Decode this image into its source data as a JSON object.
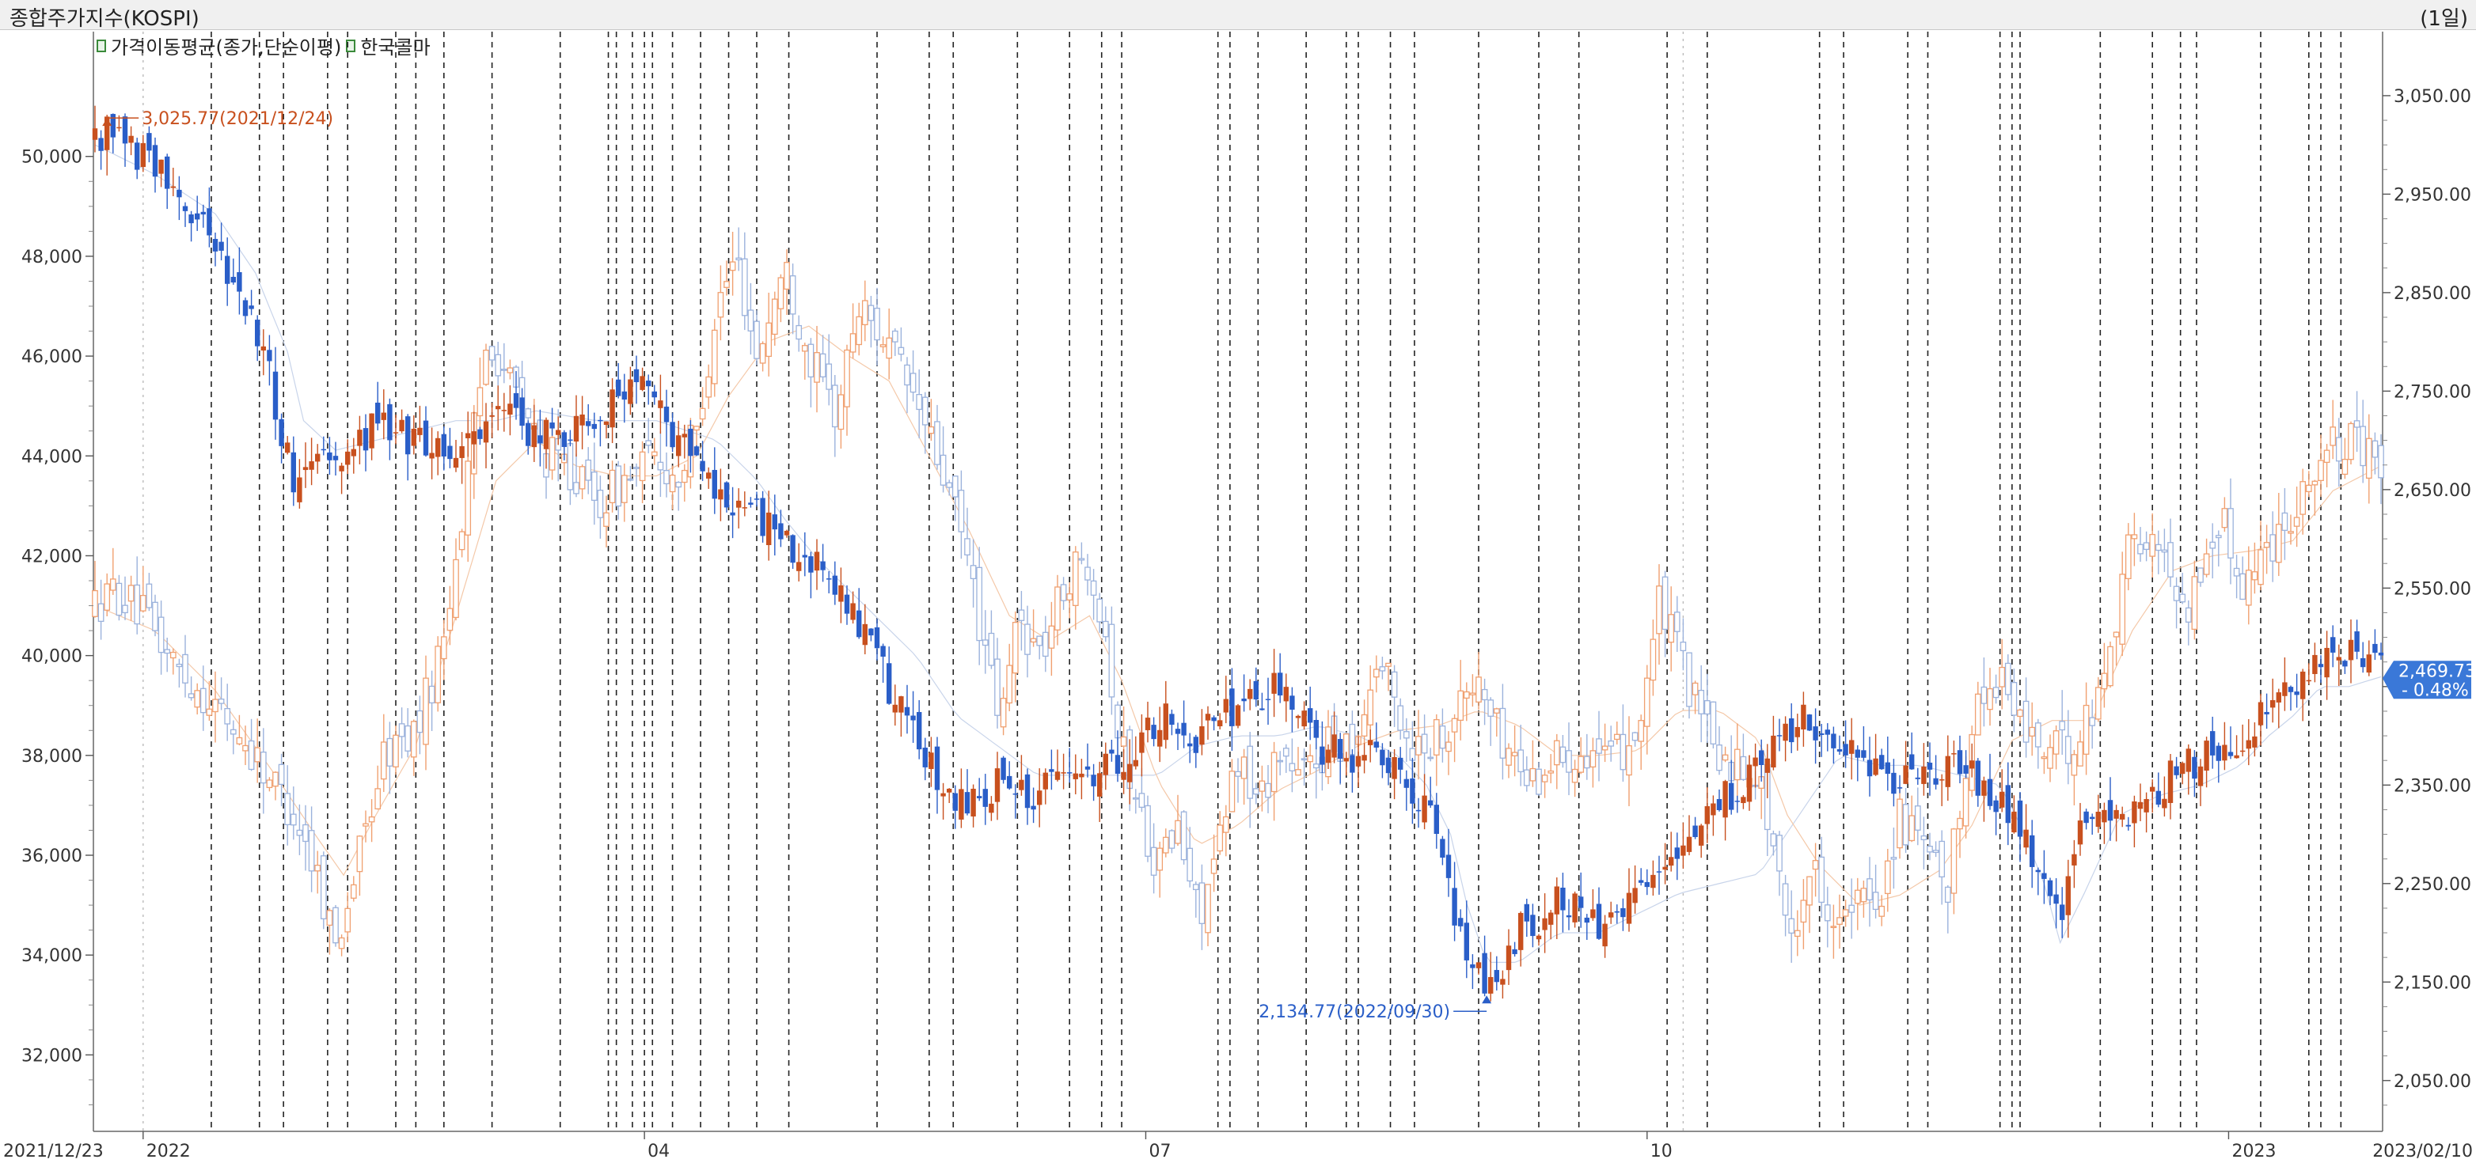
{
  "header": {
    "title": "종합주가지수(KOSPI)",
    "period": "(1일)"
  },
  "legend": [
    {
      "label": "가격이동평균(종가,단순이평)",
      "icon": "ma-legend-icon"
    },
    {
      "label": "한국콜마",
      "icon": "compare-legend-icon"
    }
  ],
  "colors": {
    "up": "#c8501e",
    "down": "#2a5ec8",
    "up_light": "#f0a070",
    "down_light": "#9bb2dc",
    "current_badge": "#3a78d8"
  },
  "annotations": {
    "high_label": "3,025.77(2021/12/24)",
    "low_label": "2,134.77(2022/09/30)",
    "current_value": "2,469.73",
    "current_change": "- 0.48%"
  },
  "chart_data": {
    "type": "candlestick",
    "x_start": "2021/12/23",
    "x_end": "2023/02/10",
    "x_tick_labels": [
      "2021/12/23",
      "2022",
      "04",
      "07",
      "10",
      "2023",
      "2023/02/10"
    ],
    "left_axis": {
      "series": "한국콜마",
      "ticks": [
        "50,000",
        "48,000",
        "46,000",
        "44,000",
        "42,000",
        "40,000",
        "38,000",
        "36,000",
        "34,000",
        "32,000"
      ],
      "range": [
        30500,
        52500
      ]
    },
    "right_axis": {
      "series": "종합주가지수(KOSPI)",
      "ticks": [
        "3,050.00",
        "2,950.00",
        "2,850.00",
        "2,750.00",
        "2,650.00",
        "2,550.00",
        "2,450.00",
        "2,350.00",
        "2,250.00",
        "2,150.00",
        "2,050.00"
      ],
      "range": [
        2000,
        3115
      ]
    },
    "series": [
      {
        "name": "종합주가지수(KOSPI)",
        "axis": "right",
        "path": [
          [
            0,
            3000
          ],
          [
            3,
            3025.77
          ],
          [
            10,
            2990
          ],
          [
            20,
            2960
          ],
          [
            30,
            2900
          ],
          [
            40,
            2820
          ],
          [
            46,
            2720
          ],
          [
            50,
            2650
          ],
          [
            55,
            2700
          ],
          [
            62,
            2680
          ],
          [
            70,
            2720
          ],
          [
            80,
            2700
          ],
          [
            90,
            2690
          ],
          [
            100,
            2730
          ],
          [
            110,
            2700
          ],
          [
            122,
            2720
          ],
          [
            135,
            2760
          ],
          [
            145,
            2700
          ],
          [
            158,
            2640
          ],
          [
            170,
            2610
          ],
          [
            180,
            2570
          ],
          [
            190,
            2520
          ],
          [
            200,
            2430
          ],
          [
            210,
            2360
          ],
          [
            215,
            2330
          ],
          [
            225,
            2350
          ],
          [
            235,
            2340
          ],
          [
            245,
            2360
          ],
          [
            255,
            2370
          ],
          [
            265,
            2420
          ],
          [
            275,
            2400
          ],
          [
            285,
            2430
          ],
          [
            295,
            2450
          ],
          [
            305,
            2390
          ],
          [
            315,
            2380
          ],
          [
            325,
            2370
          ],
          [
            330,
            2330
          ],
          [
            335,
            2300
          ],
          [
            340,
            2200
          ],
          [
            347,
            2134.77
          ],
          [
            355,
            2200
          ],
          [
            365,
            2230
          ],
          [
            375,
            2210
          ],
          [
            385,
            2240
          ],
          [
            395,
            2270
          ],
          [
            405,
            2330
          ],
          [
            415,
            2370
          ],
          [
            425,
            2420
          ],
          [
            435,
            2400
          ],
          [
            445,
            2360
          ],
          [
            455,
            2350
          ],
          [
            465,
            2380
          ],
          [
            475,
            2330
          ],
          [
            483,
            2280
          ],
          [
            490,
            2210
          ],
          [
            495,
            2300
          ],
          [
            505,
            2320
          ],
          [
            515,
            2350
          ],
          [
            525,
            2380
          ],
          [
            535,
            2400
          ],
          [
            545,
            2440
          ],
          [
            555,
            2470
          ],
          [
            563,
            2480
          ],
          [
            570,
            2469.73
          ]
        ]
      },
      {
        "name": "한국콜마",
        "axis": "left",
        "path": [
          [
            0,
            41000
          ],
          [
            5,
            41300
          ],
          [
            12,
            40800
          ],
          [
            20,
            39800
          ],
          [
            30,
            39000
          ],
          [
            40,
            38000
          ],
          [
            50,
            36800
          ],
          [
            56,
            35500
          ],
          [
            60,
            34200
          ],
          [
            66,
            36000
          ],
          [
            72,
            38000
          ],
          [
            80,
            38500
          ],
          [
            86,
            40000
          ],
          [
            92,
            43000
          ],
          [
            98,
            46500
          ],
          [
            105,
            45200
          ],
          [
            112,
            44000
          ],
          [
            118,
            43800
          ],
          [
            125,
            43000
          ],
          [
            132,
            43500
          ],
          [
            140,
            44000
          ],
          [
            145,
            43500
          ],
          [
            150,
            44500
          ],
          [
            155,
            47000
          ],
          [
            160,
            48000
          ],
          [
            165,
            46000
          ],
          [
            172,
            47800
          ],
          [
            178,
            46000
          ],
          [
            185,
            44800
          ],
          [
            190,
            47000
          ],
          [
            196,
            46500
          ],
          [
            205,
            45000
          ],
          [
            212,
            43500
          ],
          [
            218,
            41800
          ],
          [
            222,
            40000
          ],
          [
            226,
            38600
          ],
          [
            230,
            40800
          ],
          [
            236,
            40000
          ],
          [
            242,
            41500
          ],
          [
            248,
            42000
          ],
          [
            252,
            40500
          ],
          [
            255,
            38500
          ],
          [
            260,
            37000
          ],
          [
            265,
            35800
          ],
          [
            270,
            36500
          ],
          [
            275,
            34800
          ],
          [
            280,
            36000
          ],
          [
            285,
            38000
          ],
          [
            290,
            37000
          ],
          [
            295,
            38200
          ],
          [
            300,
            37500
          ],
          [
            305,
            38000
          ],
          [
            315,
            38500
          ],
          [
            320,
            40000
          ],
          [
            328,
            38200
          ],
          [
            335,
            38400
          ],
          [
            340,
            39000
          ],
          [
            345,
            39500
          ],
          [
            350,
            38400
          ],
          [
            358,
            37500
          ],
          [
            365,
            38000
          ],
          [
            372,
            38200
          ],
          [
            378,
            37800
          ],
          [
            385,
            38600
          ],
          [
            390,
            41000
          ],
          [
            395,
            40000
          ],
          [
            400,
            38800
          ],
          [
            405,
            38000
          ],
          [
            410,
            37800
          ],
          [
            413,
            38000
          ],
          [
            418,
            36500
          ],
          [
            422,
            34200
          ],
          [
            428,
            35800
          ],
          [
            435,
            34600
          ],
          [
            440,
            35000
          ],
          [
            445,
            35200
          ],
          [
            450,
            36800
          ],
          [
            458,
            35800
          ],
          [
            462,
            35200
          ],
          [
            468,
            38800
          ],
          [
            475,
            39700
          ],
          [
            480,
            38600
          ],
          [
            488,
            38000
          ],
          [
            495,
            38400
          ],
          [
            500,
            39300
          ],
          [
            508,
            42500
          ],
          [
            515,
            42000
          ],
          [
            522,
            41000
          ],
          [
            530,
            42800
          ],
          [
            535,
            41500
          ],
          [
            542,
            42200
          ],
          [
            548,
            43000
          ],
          [
            555,
            44000
          ],
          [
            562,
            44300
          ],
          [
            570,
            43800
          ]
        ]
      },
      {
        "name": "MA(종가)",
        "axis": "right",
        "path": [
          [
            0,
            3000
          ],
          [
            15,
            2970
          ],
          [
            30,
            2930
          ],
          [
            40,
            2870
          ],
          [
            48,
            2790
          ],
          [
            52,
            2720
          ],
          [
            60,
            2690
          ],
          [
            70,
            2700
          ],
          [
            80,
            2710
          ],
          [
            90,
            2720
          ],
          [
            100,
            2720
          ],
          [
            110,
            2730
          ],
          [
            125,
            2720
          ],
          [
            140,
            2720
          ],
          [
            155,
            2700
          ],
          [
            165,
            2660
          ],
          [
            172,
            2620
          ],
          [
            180,
            2580
          ],
          [
            190,
            2540
          ],
          [
            205,
            2480
          ],
          [
            215,
            2420
          ],
          [
            225,
            2390
          ],
          [
            235,
            2360
          ],
          [
            245,
            2360
          ],
          [
            255,
            2360
          ],
          [
            265,
            2360
          ],
          [
            275,
            2390
          ],
          [
            285,
            2400
          ],
          [
            295,
            2400
          ],
          [
            305,
            2410
          ],
          [
            315,
            2400
          ],
          [
            325,
            2380
          ],
          [
            332,
            2350
          ],
          [
            338,
            2300
          ],
          [
            342,
            2230
          ],
          [
            347,
            2170
          ],
          [
            355,
            2170
          ],
          [
            365,
            2200
          ],
          [
            375,
            2200
          ],
          [
            385,
            2220
          ],
          [
            395,
            2240
          ],
          [
            405,
            2250
          ],
          [
            415,
            2260
          ],
          [
            425,
            2320
          ],
          [
            435,
            2380
          ],
          [
            445,
            2370
          ],
          [
            455,
            2370
          ],
          [
            465,
            2360
          ],
          [
            475,
            2350
          ],
          [
            480,
            2310
          ],
          [
            486,
            2250
          ],
          [
            490,
            2190
          ],
          [
            496,
            2240
          ],
          [
            505,
            2320
          ],
          [
            515,
            2340
          ],
          [
            525,
            2350
          ],
          [
            535,
            2370
          ],
          [
            542,
            2400
          ],
          [
            548,
            2420
          ],
          [
            555,
            2450
          ],
          [
            562,
            2450
          ],
          [
            570,
            2460
          ]
        ]
      },
      {
        "name": "MA(한국콜마)",
        "axis": "left",
        "path": [
          [
            0,
            41000
          ],
          [
            15,
            40500
          ],
          [
            30,
            39300
          ],
          [
            45,
            37600
          ],
          [
            55,
            36400
          ],
          [
            62,
            35600
          ],
          [
            70,
            36800
          ],
          [
            80,
            38200
          ],
          [
            90,
            40800
          ],
          [
            100,
            43500
          ],
          [
            110,
            44300
          ],
          [
            120,
            43800
          ],
          [
            130,
            43600
          ],
          [
            140,
            43600
          ],
          [
            150,
            44000
          ],
          [
            158,
            45200
          ],
          [
            168,
            46300
          ],
          [
            178,
            46600
          ],
          [
            188,
            46000
          ],
          [
            198,
            45500
          ],
          [
            208,
            44000
          ],
          [
            218,
            42500
          ],
          [
            228,
            40800
          ],
          [
            238,
            40300
          ],
          [
            248,
            40800
          ],
          [
            256,
            39500
          ],
          [
            265,
            37500
          ],
          [
            275,
            36200
          ],
          [
            285,
            36600
          ],
          [
            295,
            37300
          ],
          [
            305,
            37700
          ],
          [
            315,
            38200
          ],
          [
            325,
            38500
          ],
          [
            335,
            38600
          ],
          [
            345,
            38900
          ],
          [
            355,
            38600
          ],
          [
            365,
            38000
          ],
          [
            375,
            38000
          ],
          [
            385,
            38100
          ],
          [
            395,
            38900
          ],
          [
            405,
            38900
          ],
          [
            415,
            38300
          ],
          [
            422,
            36800
          ],
          [
            430,
            35800
          ],
          [
            440,
            35000
          ],
          [
            450,
            35200
          ],
          [
            460,
            35700
          ],
          [
            468,
            36600
          ],
          [
            478,
            38300
          ],
          [
            488,
            38700
          ],
          [
            498,
            38700
          ],
          [
            508,
            40500
          ],
          [
            518,
            41700
          ],
          [
            528,
            42000
          ],
          [
            538,
            42100
          ],
          [
            548,
            42300
          ],
          [
            558,
            43300
          ],
          [
            570,
            43800
          ]
        ]
      }
    ],
    "annotations": [
      {
        "text": "3,025.77(2021/12/24)",
        "x": 3,
        "value": 3025.77,
        "axis": "right"
      },
      {
        "text": "2,134.77(2022/09/30)",
        "x": 347,
        "value": 2134.77,
        "axis": "right"
      }
    ],
    "event_markers_x": [
      29,
      41,
      47,
      58,
      63,
      75,
      80,
      87,
      99,
      116,
      128,
      130,
      134,
      137,
      139,
      144,
      151,
      158,
      165,
      173,
      195,
      208,
      214,
      230,
      243,
      251,
      256,
      280,
      283,
      290,
      302,
      312,
      315,
      323,
      329,
      345,
      360,
      370,
      392,
      402,
      430,
      436,
      452,
      457,
      475,
      478,
      480,
      500,
      513,
      520,
      524,
      540,
      552,
      555,
      560
    ],
    "grid": false,
    "legend_position": "top-left"
  }
}
